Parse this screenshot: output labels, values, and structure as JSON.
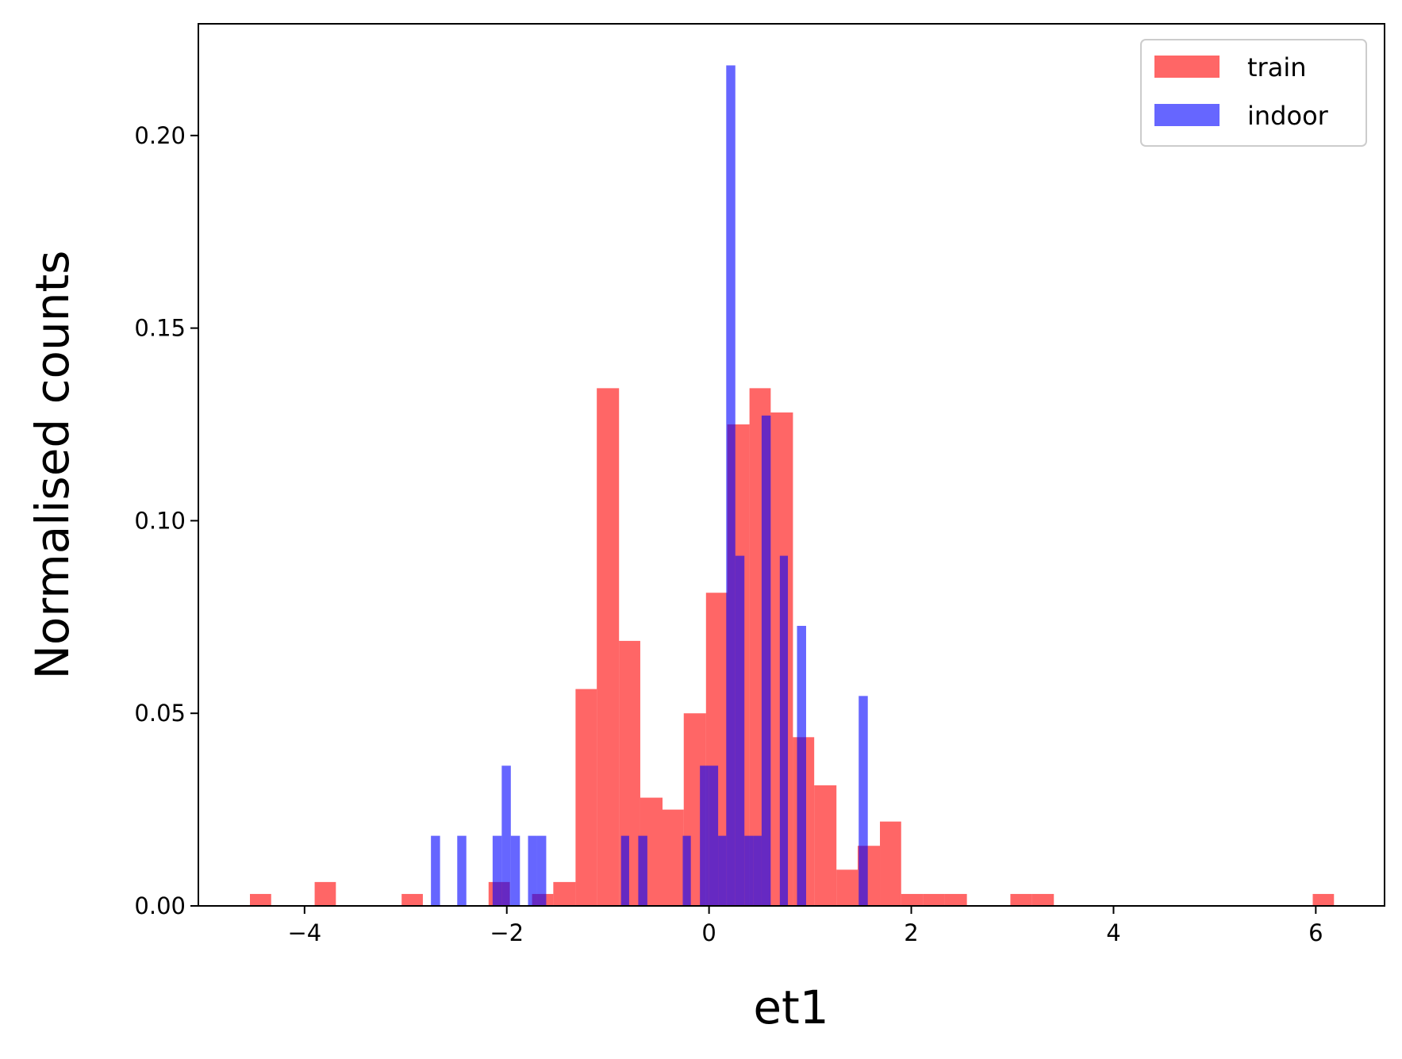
{
  "chart_data": {
    "type": "bar",
    "subtype": "histogram",
    "title": "",
    "xlabel": "et1",
    "ylabel": "Normalised counts",
    "xlim": [
      -5.05,
      6.68
    ],
    "ylim": [
      0,
      0.229
    ],
    "xticks": [
      -4,
      -2,
      0,
      2,
      4,
      6
    ],
    "xtick_labels": [
      "−4",
      "−2",
      "0",
      "2",
      "4",
      "6"
    ],
    "yticks": [
      0,
      0.05,
      0.1,
      0.15,
      0.2
    ],
    "ytick_labels": [
      "0.00",
      "0.05",
      "0.10",
      "0.15",
      "0.20"
    ],
    "grid": false,
    "legend_position": "top-right",
    "series": [
      {
        "name": "train",
        "color": "#ff0000",
        "opacity": 0.6,
        "bins": [
          {
            "x0": -4.54,
            "x1": -4.33,
            "value": 0.0031
          },
          {
            "x0": -3.9,
            "x1": -3.69,
            "value": 0.0062
          },
          {
            "x0": -3.04,
            "x1": -2.83,
            "value": 0.0031
          },
          {
            "x0": -2.18,
            "x1": -1.97,
            "value": 0.0062
          },
          {
            "x0": -1.75,
            "x1": -1.54,
            "value": 0.0031
          },
          {
            "x0": -1.54,
            "x1": -1.32,
            "value": 0.0062
          },
          {
            "x0": -1.32,
            "x1": -1.11,
            "value": 0.0563
          },
          {
            "x0": -1.11,
            "x1": -0.89,
            "value": 0.1344
          },
          {
            "x0": -0.89,
            "x1": -0.68,
            "value": 0.0688
          },
          {
            "x0": -0.68,
            "x1": -0.46,
            "value": 0.0281
          },
          {
            "x0": -0.46,
            "x1": -0.25,
            "value": 0.025
          },
          {
            "x0": -0.25,
            "x1": -0.03,
            "value": 0.05
          },
          {
            "x0": -0.03,
            "x1": 0.18,
            "value": 0.0813
          },
          {
            "x0": 0.18,
            "x1": 0.4,
            "value": 0.125
          },
          {
            "x0": 0.4,
            "x1": 0.61,
            "value": 0.1344
          },
          {
            "x0": 0.61,
            "x1": 0.83,
            "value": 0.1281
          },
          {
            "x0": 0.83,
            "x1": 1.04,
            "value": 0.0438
          },
          {
            "x0": 1.04,
            "x1": 1.26,
            "value": 0.0313
          },
          {
            "x0": 1.26,
            "x1": 1.47,
            "value": 0.0094
          },
          {
            "x0": 1.47,
            "x1": 1.69,
            "value": 0.0156
          },
          {
            "x0": 1.69,
            "x1": 1.9,
            "value": 0.0219
          },
          {
            "x0": 1.9,
            "x1": 2.12,
            "value": 0.0031
          },
          {
            "x0": 2.12,
            "x1": 2.33,
            "value": 0.0031
          },
          {
            "x0": 2.33,
            "x1": 2.55,
            "value": 0.0031
          },
          {
            "x0": 2.98,
            "x1": 3.19,
            "value": 0.0031
          },
          {
            "x0": 3.19,
            "x1": 3.41,
            "value": 0.0031
          },
          {
            "x0": 5.97,
            "x1": 6.18,
            "value": 0.0031
          }
        ]
      },
      {
        "name": "indoor",
        "color": "#0000ff",
        "opacity": 0.6,
        "bins": [
          {
            "x0": -2.75,
            "x1": -2.66,
            "value": 0.0182
          },
          {
            "x0": -2.49,
            "x1": -2.4,
            "value": 0.0182
          },
          {
            "x0": -2.14,
            "x1": -2.05,
            "value": 0.0182
          },
          {
            "x0": -2.05,
            "x1": -1.96,
            "value": 0.0364
          },
          {
            "x0": -1.96,
            "x1": -1.87,
            "value": 0.0182
          },
          {
            "x0": -1.79,
            "x1": -1.7,
            "value": 0.0182
          },
          {
            "x0": -1.7,
            "x1": -1.61,
            "value": 0.0182
          },
          {
            "x0": -0.87,
            "x1": -0.79,
            "value": 0.0182
          },
          {
            "x0": -0.7,
            "x1": -0.61,
            "value": 0.0182
          },
          {
            "x0": -0.26,
            "x1": -0.18,
            "value": 0.0182
          },
          {
            "x0": -0.09,
            "x1": 0.0,
            "value": 0.0364
          },
          {
            "x0": 0.0,
            "x1": 0.09,
            "value": 0.0364
          },
          {
            "x0": 0.09,
            "x1": 0.17,
            "value": 0.0182
          },
          {
            "x0": 0.17,
            "x1": 0.26,
            "value": 0.2182
          },
          {
            "x0": 0.26,
            "x1": 0.35,
            "value": 0.0909
          },
          {
            "x0": 0.35,
            "x1": 0.44,
            "value": 0.0182
          },
          {
            "x0": 0.44,
            "x1": 0.52,
            "value": 0.0182
          },
          {
            "x0": 0.52,
            "x1": 0.61,
            "value": 0.1273
          },
          {
            "x0": 0.7,
            "x1": 0.78,
            "value": 0.0909
          },
          {
            "x0": 0.87,
            "x1": 0.96,
            "value": 0.0727
          },
          {
            "x0": 1.48,
            "x1": 1.57,
            "value": 0.0545
          }
        ]
      }
    ]
  }
}
